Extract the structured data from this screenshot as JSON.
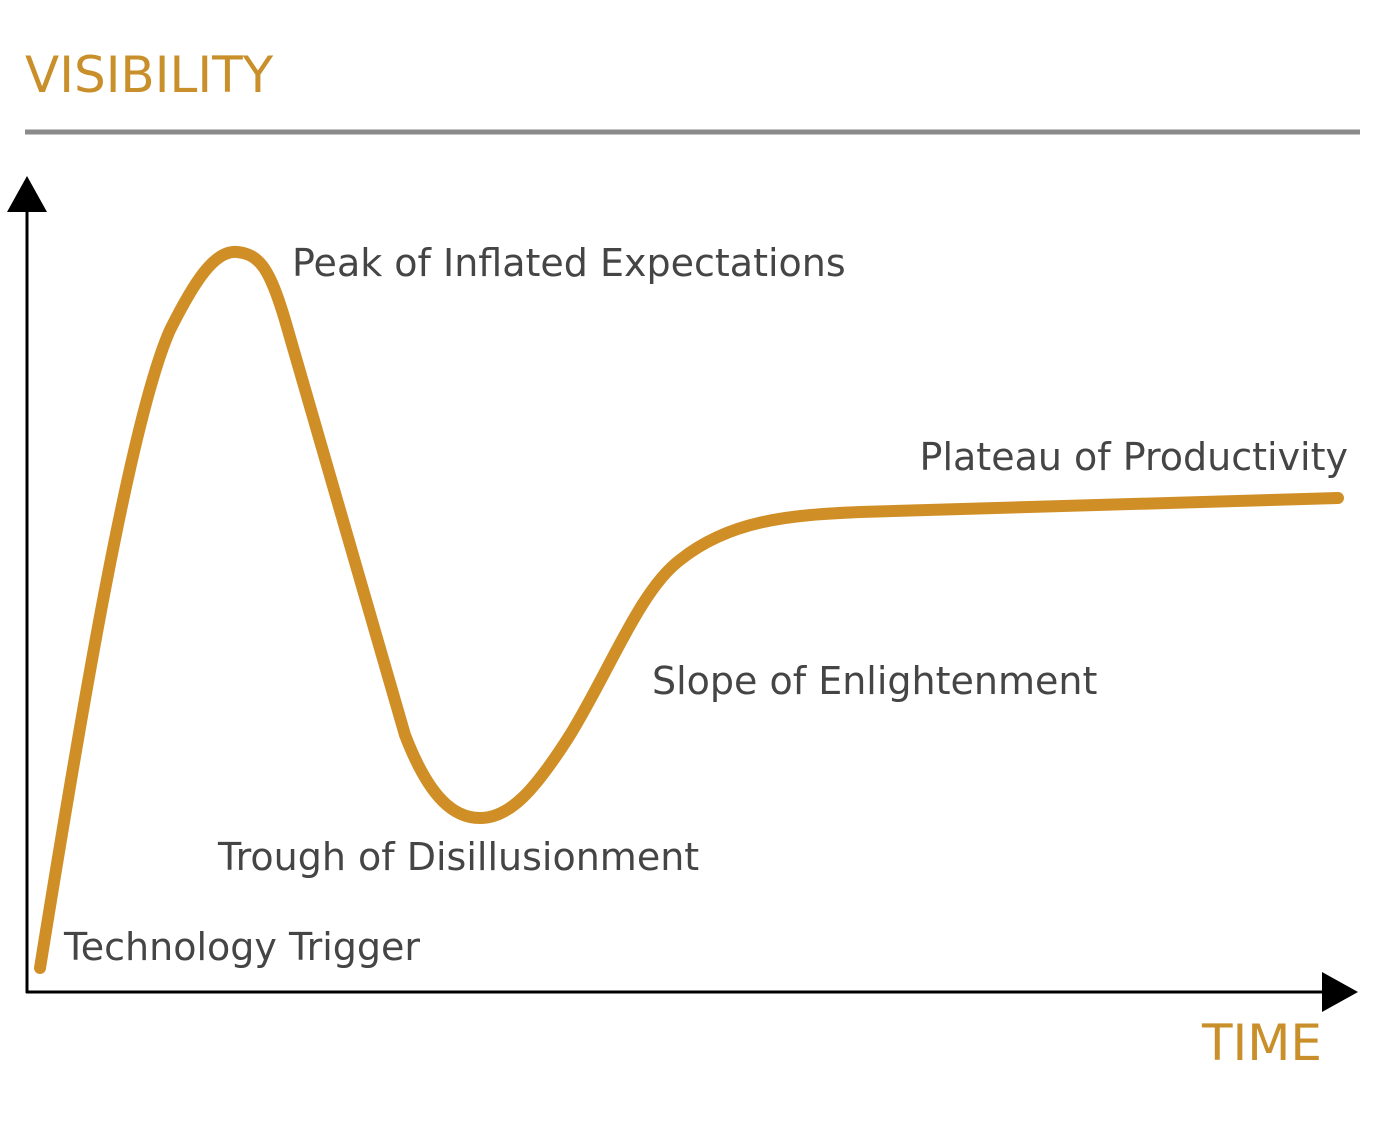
{
  "header": {
    "title": "VISIBILITY"
  },
  "axis": {
    "x_label": "TIME"
  },
  "phases": [
    {
      "label": "Technology Trigger"
    },
    {
      "label": "Peak of Inflated Expectations"
    },
    {
      "label": "Trough of Disillusionment"
    },
    {
      "label": "Slope of Enlightenment"
    },
    {
      "label": "Plateau of Productivity"
    }
  ]
}
